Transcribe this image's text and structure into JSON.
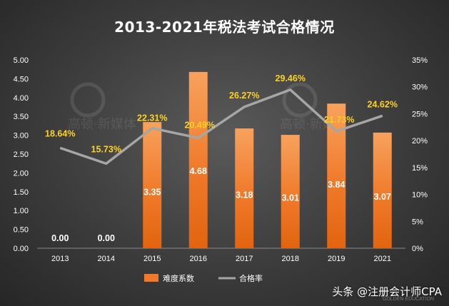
{
  "chart_data": {
    "type": "bar+line",
    "title": "2013-2021年税法考试合格情况",
    "categories": [
      "2013",
      "2014",
      "2015",
      "2016",
      "2017",
      "2018",
      "2019",
      "2021"
    ],
    "series": [
      {
        "name": "难度系数",
        "type": "bar",
        "axis": "left",
        "values": [
          0.0,
          0.0,
          3.35,
          4.68,
          3.18,
          3.01,
          3.84,
          3.07
        ],
        "labels": [
          "0.00",
          "0.00",
          "3.35",
          "4.68",
          "3.18",
          "3.01",
          "3.84",
          "3.07"
        ],
        "color": "#f07a2a"
      },
      {
        "name": "合格率",
        "type": "line",
        "axis": "right",
        "values": [
          18.64,
          15.73,
          22.31,
          20.49,
          26.27,
          29.46,
          21.73,
          24.62
        ],
        "labels": [
          "18.64%",
          "15.73%",
          "22.31%",
          "20.49%",
          "26.27%",
          "29.46%",
          "21.73%",
          "24.62%"
        ],
        "color": "#a6a6a6",
        "label_color": "#ffd21e"
      }
    ],
    "y_left": {
      "ylim": [
        0,
        5
      ],
      "ticks": [
        "0.00",
        "0.50",
        "1.00",
        "1.50",
        "2.00",
        "2.50",
        "3.00",
        "3.50",
        "4.00",
        "4.50",
        "5.00"
      ]
    },
    "y_right": {
      "ylim": [
        0,
        35
      ],
      "ticks": [
        "0%",
        "5%",
        "10%",
        "15%",
        "20%",
        "25%",
        "30%",
        "35%"
      ]
    },
    "grid": false,
    "legend": "bottom"
  },
  "watermarks": [
    "高顿·新媒体",
    "高顿·新媒体"
  ],
  "footer": {
    "source": "头条 @注册会计师CPA",
    "brand_small": "GOLDEN EDUCATION"
  }
}
